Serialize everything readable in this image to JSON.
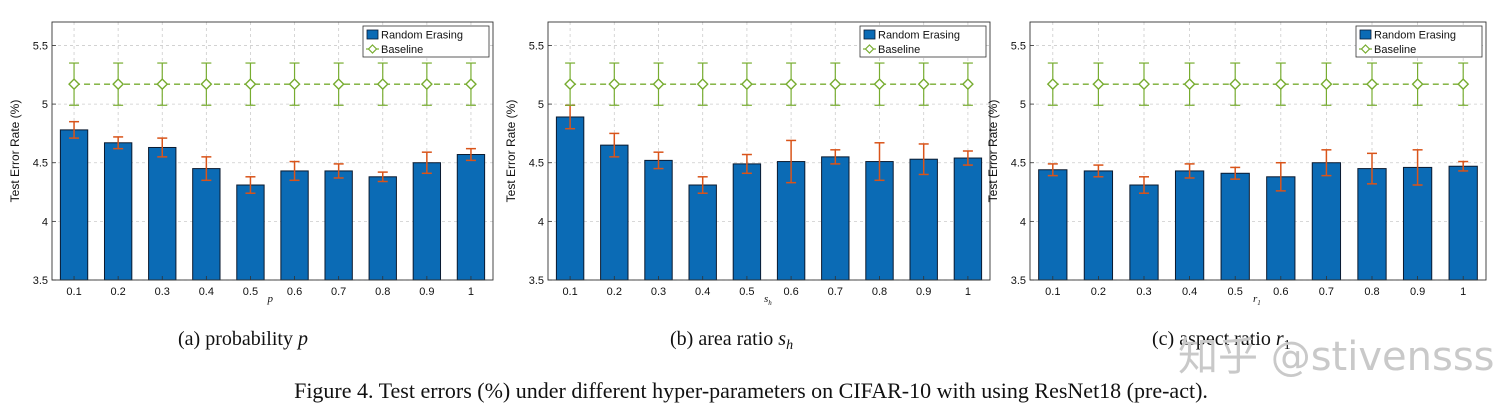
{
  "chart_data": [
    {
      "type": "bar",
      "panel_caption": "(a)  probability p",
      "xlabel": "p",
      "ylabel": "Test Error Rate (%)",
      "categories": [
        "0.1",
        "0.2",
        "0.3",
        "0.4",
        "0.5",
        "0.6",
        "0.7",
        "0.8",
        "0.9",
        "1"
      ],
      "ylim": [
        3.5,
        5.7
      ],
      "yticks": [
        "3.5",
        "4",
        "4.5",
        "5",
        "5.5"
      ],
      "grid": true,
      "legend_position": "top-right",
      "series": [
        {
          "name": "Random Erasing",
          "kind": "bar",
          "values": [
            4.78,
            4.67,
            4.63,
            4.45,
            4.31,
            4.43,
            4.43,
            4.38,
            4.5,
            4.57
          ],
          "errors": [
            0.07,
            0.05,
            0.08,
            0.1,
            0.07,
            0.08,
            0.06,
            0.04,
            0.09,
            0.05
          ]
        },
        {
          "name": "Baseline",
          "kind": "line",
          "values": [
            5.17,
            5.17,
            5.17,
            5.17,
            5.17,
            5.17,
            5.17,
            5.17,
            5.17,
            5.17
          ],
          "errors": [
            0.18,
            0.18,
            0.18,
            0.18,
            0.18,
            0.18,
            0.18,
            0.18,
            0.18,
            0.18
          ]
        }
      ]
    },
    {
      "type": "bar",
      "panel_caption": "(b)  area ratio s_h",
      "xlabel": "s_h",
      "ylabel": "Test Error Rate (%)",
      "categories": [
        "0.1",
        "0.2",
        "0.3",
        "0.4",
        "0.5",
        "0.6",
        "0.7",
        "0.8",
        "0.9",
        "1"
      ],
      "ylim": [
        3.5,
        5.7
      ],
      "yticks": [
        "3.5",
        "4",
        "4.5",
        "5",
        "5.5"
      ],
      "grid": true,
      "legend_position": "top-right",
      "series": [
        {
          "name": "Random Erasing",
          "kind": "bar",
          "values": [
            4.89,
            4.65,
            4.52,
            4.31,
            4.49,
            4.51,
            4.55,
            4.51,
            4.53,
            4.54
          ],
          "errors": [
            0.1,
            0.1,
            0.07,
            0.07,
            0.08,
            0.18,
            0.06,
            0.16,
            0.13,
            0.06
          ]
        },
        {
          "name": "Baseline",
          "kind": "line",
          "values": [
            5.17,
            5.17,
            5.17,
            5.17,
            5.17,
            5.17,
            5.17,
            5.17,
            5.17,
            5.17
          ],
          "errors": [
            0.18,
            0.18,
            0.18,
            0.18,
            0.18,
            0.18,
            0.18,
            0.18,
            0.18,
            0.18
          ]
        }
      ]
    },
    {
      "type": "bar",
      "panel_caption": "(c)  aspect ratio r_1",
      "xlabel": "r_1",
      "ylabel": "Test Error Rate (%)",
      "categories": [
        "0.1",
        "0.2",
        "0.3",
        "0.4",
        "0.5",
        "0.6",
        "0.7",
        "0.8",
        "0.9",
        "1"
      ],
      "ylim": [
        3.5,
        5.7
      ],
      "yticks": [
        "3.5",
        "4",
        "4.5",
        "5",
        "5.5"
      ],
      "grid": true,
      "legend_position": "top-right",
      "series": [
        {
          "name": "Random Erasing",
          "kind": "bar",
          "values": [
            4.44,
            4.43,
            4.31,
            4.43,
            4.41,
            4.38,
            4.5,
            4.45,
            4.46,
            4.47
          ],
          "errors": [
            0.05,
            0.05,
            0.07,
            0.06,
            0.05,
            0.12,
            0.11,
            0.13,
            0.15,
            0.04
          ]
        },
        {
          "name": "Baseline",
          "kind": "line",
          "values": [
            5.17,
            5.17,
            5.17,
            5.17,
            5.17,
            5.17,
            5.17,
            5.17,
            5.17,
            5.17
          ],
          "errors": [
            0.18,
            0.18,
            0.18,
            0.18,
            0.18,
            0.18,
            0.18,
            0.18,
            0.18,
            0.18
          ]
        }
      ]
    }
  ],
  "figure_caption": "Figure 4. Test errors (%) under different hyper-parameters on CIFAR-10 with using ResNet18 (pre-act).",
  "watermark_text": "知乎 @stivensss",
  "colors": {
    "bar_fill": "#0b6bb5",
    "bar_stroke": "#0a1a30",
    "error_bar": "#d9541a",
    "baseline": "#77ac30",
    "grid": "#cccccc",
    "axis": "#333333"
  }
}
